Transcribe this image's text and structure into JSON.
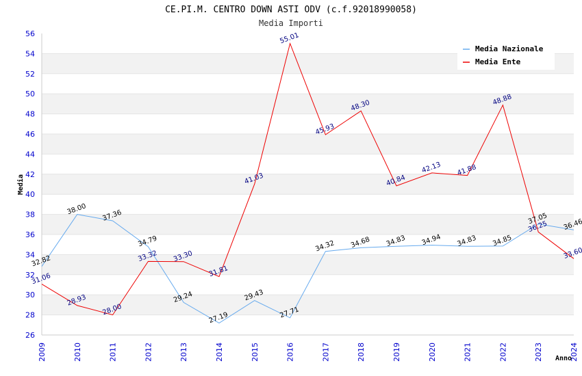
{
  "chart_data": {
    "type": "line",
    "title": "CE.PI.M. CENTRO DOWN ASTI ODV (c.f.92018990058)",
    "subtitle": "Media Importi",
    "xlabel": "Anno",
    "ylabel": "Media",
    "ylim": [
      26,
      56
    ],
    "ytick_step": 2,
    "grid": "horizontal alternating bands",
    "legend_position": "top-right",
    "categories": [
      "2009",
      "2010",
      "2011",
      "2012",
      "2013",
      "2014",
      "2015",
      "2016",
      "2017",
      "2018",
      "2019",
      "2020",
      "2021",
      "2022",
      "2023",
      "2024"
    ],
    "series": [
      {
        "name": "Media Nazionale",
        "color": "#66aaee",
        "label_color": "#000000",
        "values": [
          32.82,
          38.0,
          37.36,
          34.79,
          29.24,
          27.19,
          29.43,
          27.71,
          34.32,
          34.68,
          34.83,
          34.94,
          34.83,
          34.85,
          37.05,
          36.46
        ]
      },
      {
        "name": "Media Ente",
        "color": "#ee0000",
        "label_color": "#000080",
        "values": [
          31.06,
          28.93,
          28.0,
          33.32,
          33.3,
          31.81,
          41.03,
          55.01,
          45.93,
          48.3,
          40.84,
          42.13,
          41.88,
          48.88,
          36.25,
          33.6
        ]
      }
    ]
  }
}
